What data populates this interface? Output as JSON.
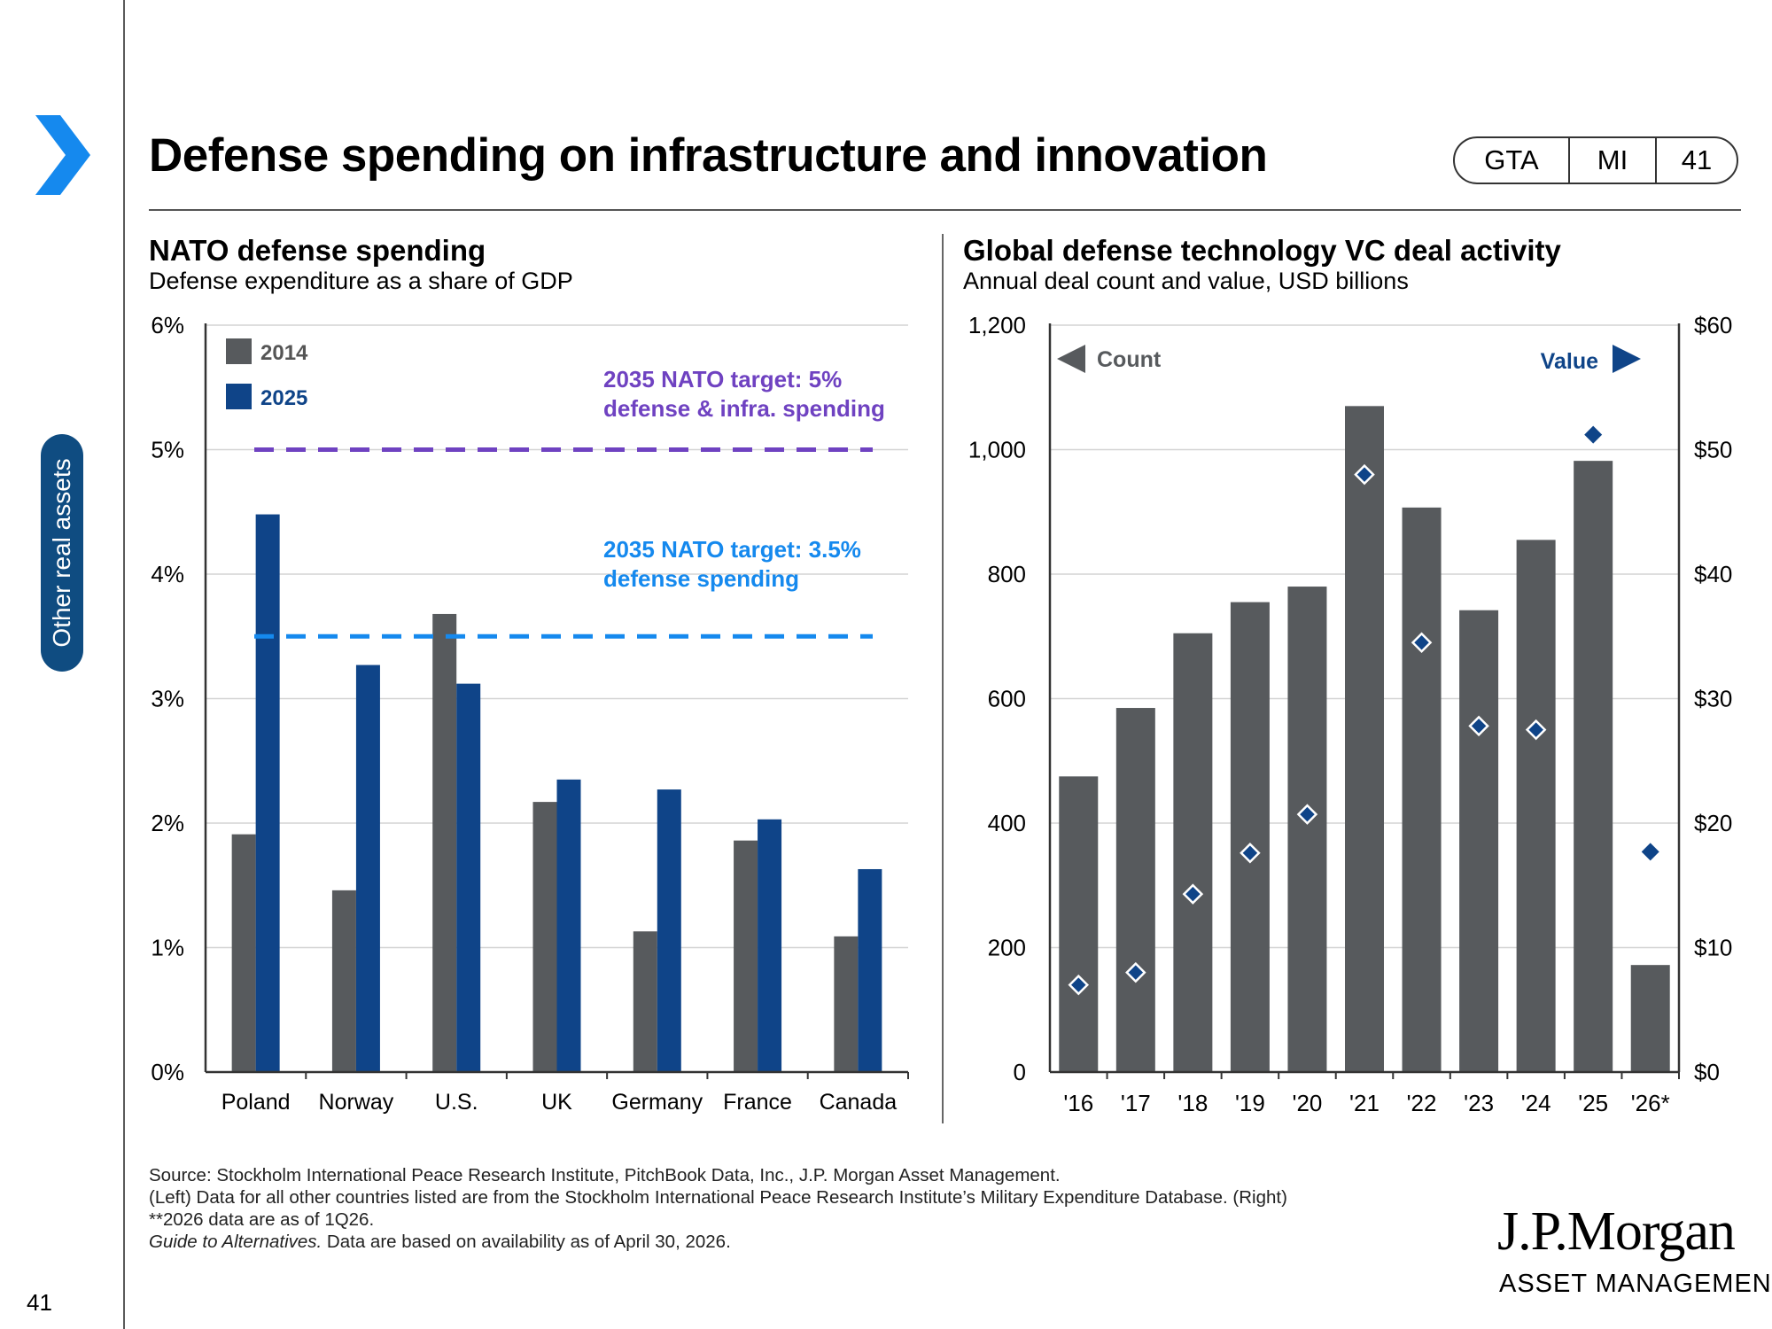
{
  "page": {
    "title": "Defense spending on infrastructure and innovation",
    "badge": [
      "GTA",
      "MI",
      "41"
    ],
    "section_label": "Other real assets",
    "page_number": "41",
    "colors": {
      "accent": "#1589ee",
      "navy": "#0f4c81",
      "gray": "#575a5d",
      "purple": "#6f42c1"
    }
  },
  "footnotes": {
    "line1": "Source: Stockholm International Peace Research Institute, PitchBook Data, Inc., J.P. Morgan Asset Management.",
    "line2": "(Left) Data for all other countries listed are from the Stockholm International Peace Research Institute’s Military Expenditure Database. (Right)",
    "line3": "**2026 data are as of 1Q26.",
    "line4_italic": "Guide to Alternatives.",
    "line4_rest": " Data are based on availability as of April 30, 2026."
  },
  "logo": {
    "name": "J.P.Morgan",
    "sub": "ASSET MANAGEMENT"
  },
  "chart_data": [
    {
      "type": "bar",
      "title": "NATO defense spending",
      "subtitle": "Defense expenditure as a share of GDP",
      "categories": [
        "Poland",
        "Norway",
        "U.S.",
        "UK",
        "Germany",
        "France",
        "Canada"
      ],
      "series": [
        {
          "name": "2014",
          "color": "#575a5d",
          "values": [
            1.91,
            1.46,
            3.68,
            2.17,
            1.13,
            1.86,
            1.09
          ]
        },
        {
          "name": "2025",
          "color": "#0f4488",
          "values": [
            4.48,
            3.27,
            3.12,
            2.35,
            2.27,
            2.03,
            1.63
          ]
        }
      ],
      "ylim": [
        0,
        6
      ],
      "yticks": [
        "0%",
        "1%",
        "2%",
        "3%",
        "4%",
        "5%",
        "6%"
      ],
      "grid": true,
      "legend_position": "top-left",
      "reference_lines": [
        {
          "value": 5,
          "color": "#6f42c1",
          "label_line1": "2035 NATO target: 5%",
          "label_line2": "defense & infra. spending"
        },
        {
          "value": 3.5,
          "color": "#1589ee",
          "label_line1": "2035 NATO target: 3.5%",
          "label_line2": "defense spending"
        }
      ]
    },
    {
      "type": "bar",
      "title": "Global defense technology VC deal activity",
      "subtitle": "Annual deal count and value, USD billions",
      "categories": [
        "'16",
        "'17",
        "'18",
        "'19",
        "'20",
        "'21",
        "'22",
        "'23",
        "'24",
        "'25",
        "'26*"
      ],
      "series": [
        {
          "name": "Count",
          "type": "bar",
          "axis": "left",
          "color": "#575a5d",
          "values": [
            475,
            585,
            705,
            755,
            780,
            1070,
            907,
            742,
            855,
            982,
            172
          ]
        },
        {
          "name": "Value",
          "type": "scatter",
          "axis": "right",
          "color": "#0f4488",
          "values": [
            7,
            8,
            14.3,
            17.6,
            20.7,
            48,
            34.5,
            27.8,
            27.5,
            51.2,
            17.7
          ]
        }
      ],
      "ylim_left": [
        0,
        1200
      ],
      "yticks_left": [
        "0",
        "200",
        "400",
        "600",
        "800",
        "1,000",
        "1,200"
      ],
      "ylim_right": [
        0,
        60
      ],
      "yticks_right": [
        "$0",
        "$10",
        "$20",
        "$30",
        "$40",
        "$50",
        "$60"
      ],
      "grid": true,
      "legend": {
        "left": "Count",
        "right": "Value"
      }
    }
  ]
}
